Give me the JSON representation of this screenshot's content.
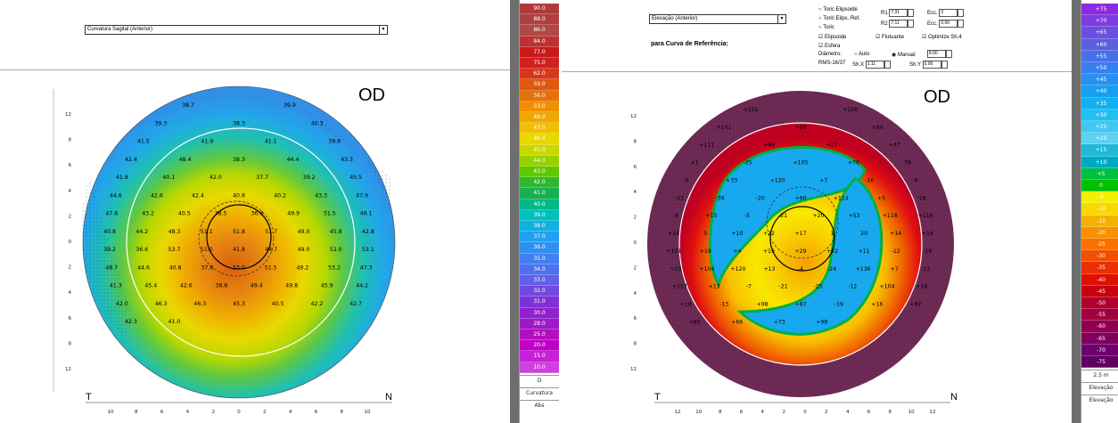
{
  "left": {
    "map_selector": "Curvatura Sagital (Anterior)",
    "eye": "OD",
    "temporal": "T",
    "nasal": "N",
    "scale": {
      "values": [
        "90.0",
        "88.0",
        "86.0",
        "84.0",
        "77.0",
        "75.0",
        "62.0",
        "59.0",
        "56.0",
        "53.0",
        "48.0",
        "47.0",
        "46.0",
        "45.0",
        "44.0",
        "43.0",
        "42.0",
        "41.0",
        "40.0",
        "39.0",
        "38.0",
        "37.0",
        "36.0",
        "35.0",
        "34.0",
        "33.0",
        "32.0",
        "31.0",
        "30.0",
        "28.0",
        "25.0",
        "20.0",
        "15.0",
        "10.0"
      ],
      "colors": [
        "#b03a3a",
        "#b04040",
        "#b04848",
        "#c03030",
        "#c81c1c",
        "#d02020",
        "#d83818",
        "#e05810",
        "#e87008",
        "#f09000",
        "#f0a800",
        "#f0c000",
        "#e8d800",
        "#c8d800",
        "#98d000",
        "#60c800",
        "#30b830",
        "#18b050",
        "#00b888",
        "#00c0c0",
        "#10b0e0",
        "#20a0f0",
        "#3090f0",
        "#4080f0",
        "#5070f0",
        "#6060e8",
        "#7048e0",
        "#8030d8",
        "#9020d0",
        "#a018c8",
        "#b010c0",
        "#c000c8",
        "#c820d8",
        "#d040e0"
      ],
      "footer": [
        "D",
        "Curvatura",
        "Abs"
      ]
    },
    "readings": [
      "38.7",
      "39.9",
      "39.3",
      "38.3",
      "40.3",
      "41.5",
      "41.9",
      "41.1",
      "39.8",
      "42.4",
      "48.4",
      "38.3",
      "44.4",
      "43.3",
      "41.8",
      "40.1",
      "42.0",
      "37.7",
      "39.2",
      "45.5",
      "44.6",
      "42.6",
      "42.4",
      "40.8",
      "40.2",
      "43.3",
      "47.9",
      "47.8",
      "43.2",
      "40.5",
      "38.5",
      "36.6",
      "49.9",
      "51.5",
      "46.1",
      "40.8",
      "44.2",
      "48.3",
      "51.1",
      "51.8",
      "51.7",
      "49.0",
      "45.8",
      "42.8",
      "39.2",
      "36.6",
      "53.7",
      "51.0",
      "41.8",
      "44.7",
      "49.0",
      "52.0",
      "53.1",
      "48.7",
      "44.6",
      "40.8",
      "37.8",
      "53.0",
      "51.5",
      "49.2",
      "53.2",
      "47.3",
      "41.3",
      "45.4",
      "42.6",
      "38.8",
      "49.4",
      "49.8",
      "45.9",
      "44.2",
      "42.0",
      "46.3",
      "46.3",
      "45.3",
      "40.5",
      "42.2",
      "42.7",
      "42.3",
      "41.0"
    ],
    "x_ticks": [
      "10",
      "8",
      "6",
      "4",
      "2",
      "0",
      "2",
      "4",
      "6",
      "8",
      "10"
    ],
    "y_ticks": [
      "12",
      "8",
      "6",
      "4",
      "2",
      "0",
      "2",
      "4",
      "6",
      "8",
      "12"
    ]
  },
  "right": {
    "map_selector": "Elevação (Anterior)",
    "reference_label": "para Curva de Referência:",
    "options": {
      "radio_ellipsoid": "Toric Elipsoide",
      "radio_toric": "Torić Elips. Ref.",
      "radio_sphere": "Toric",
      "check_sphere": "Elipsoide",
      "check_float": "Flutuante",
      "check_optimize": "Optimize Sh.4",
      "check_same": "Esfera",
      "diameter_label": "Diâmetro:",
      "radio_auto": "Auto",
      "radio_manual": "Manual",
      "rms_label": "RMS-16/37",
      "shift_label": "Sh.Y",
      "shiftx_label": "Sh.X",
      "r1_label": "R1",
      "r2_label": "R2",
      "ecc_label": "Ecc.",
      "r1_value": "7.31",
      "r2_value": "7.11",
      "ecc_value": "0",
      "ecc2_value": "0.00",
      "diam_value": "8.00",
      "rms_value": "1.11",
      "shy_value": "0.00"
    },
    "eye": "OD",
    "temporal": "T",
    "nasal": "N",
    "scale": {
      "values": [
        "+75",
        "+70",
        "+65",
        "+60",
        "+55",
        "+50",
        "+45",
        "+40",
        "+35",
        "+30",
        "+25",
        "+20",
        "+15",
        "+10",
        "+5",
        "0",
        "-5",
        "-10",
        "-15",
        "-20",
        "-25",
        "-30",
        "-35",
        "-40",
        "-45",
        "-50",
        "-55",
        "-60",
        "-65",
        "-70",
        "-75"
      ],
      "colors": [
        "#8a2be2",
        "#7b3fe0",
        "#6c4fe0",
        "#5c5fe0",
        "#4870e8",
        "#3880f0",
        "#2890f0",
        "#18a0f0",
        "#10b0f0",
        "#20c0f0",
        "#40c8f0",
        "#60d0f0",
        "#20b8d8",
        "#00a8c8",
        "#00c040",
        "#00c000",
        "#f0f000",
        "#f8d800",
        "#f8b000",
        "#f89000",
        "#f87000",
        "#f05000",
        "#e83000",
        "#e01000",
        "#c80010",
        "#b00030",
        "#a00040",
        "#900050",
        "#800060",
        "#700070",
        "#600060"
      ],
      "footer": [
        "2.5 m",
        "Elevação",
        "Elevação"
      ]
    },
    "readings": [
      "+101",
      "+100",
      "+101",
      "+98",
      "+94",
      "+111",
      "+86",
      "+27",
      "+47",
      "+1",
      "-25",
      "+105",
      "+76",
      "-78",
      "-9",
      "+33",
      "+120",
      "+7",
      "-16",
      "-8",
      "-21",
      "-39",
      "-20",
      "+90",
      "+114",
      "+5",
      "-18",
      "-9",
      "+15",
      "-5",
      "-21",
      "+20",
      "+53",
      "+118",
      "+116",
      "+14",
      "5",
      "+10",
      "+22",
      "+17",
      "1",
      "20",
      "+14",
      "+14",
      "+101",
      "+19",
      "+4",
      "+19",
      "+29",
      "+22",
      "+11",
      "-12",
      "-19",
      "+25",
      "+104",
      "+120",
      "+13",
      "-4",
      "-24",
      "+136",
      "+7",
      "-13",
      "+117",
      "+13",
      "-7",
      "-21",
      "-25",
      "-12",
      "+104",
      "+14",
      "+18",
      "-13",
      "+98",
      "+87",
      "-19",
      "+16",
      "+92",
      "+80",
      "+66",
      "+73",
      "+98"
    ],
    "x_ticks": [
      "12",
      "10",
      "8",
      "6",
      "4",
      "2",
      "0",
      "2",
      "4",
      "6",
      "8",
      "10",
      "12"
    ],
    "y_ticks": [
      "12",
      "8",
      "6",
      "4",
      "2",
      "0",
      "2",
      "4",
      "6",
      "8",
      "12"
    ]
  }
}
